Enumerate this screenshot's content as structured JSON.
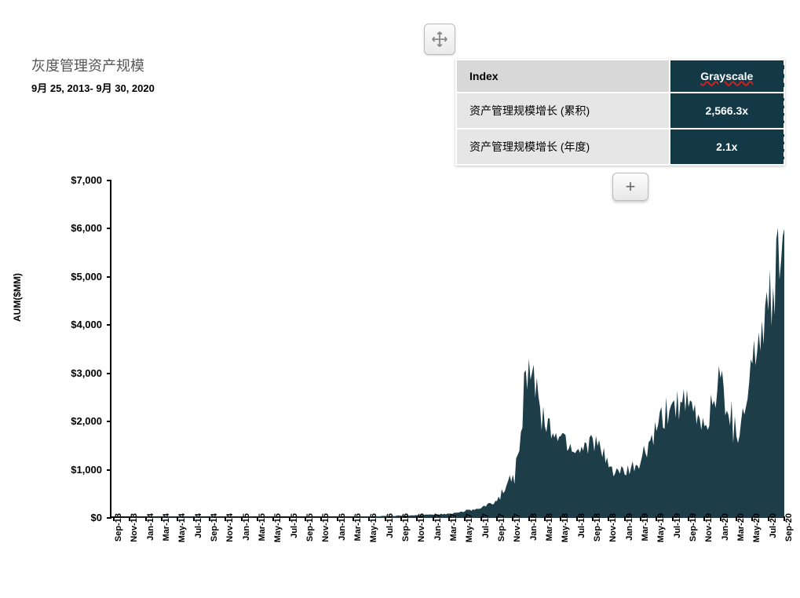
{
  "header": {
    "title": "灰度管理资产规模",
    "subtitle": "9月 25, 2013- 9月 30, 2020"
  },
  "table": {
    "header_label": "Index",
    "header_value": "Grayscale",
    "rows": [
      {
        "label": "资产管理规模增长 (累积)",
        "value": "2,566.3x"
      },
      {
        "label": "资产管理规模增长 (年度)",
        "value": "2.1x"
      }
    ],
    "header_bg": "#d8d8d8",
    "row_bg": "#e6e6e6",
    "value_bg": "#133947",
    "value_color": "#ffffff"
  },
  "chart": {
    "type": "area",
    "ylabel": "AUM($MM)",
    "ylim": [
      0,
      7000
    ],
    "ytick_step": 1000,
    "ytick_prefix": "$",
    "ytick_format": "comma",
    "background_color": "#ffffff",
    "series_color": "#1d3d48",
    "axis_color": "#000000",
    "label_fontsize": 12,
    "tick_fontsize": 11,
    "x_categories": [
      "Sep-13",
      "Nov-13",
      "Jan-14",
      "Mar-14",
      "May-14",
      "Jul-14",
      "Sep-14",
      "Nov-14",
      "Jan-15",
      "Mar-15",
      "May-15",
      "Jul-15",
      "Sep-15",
      "Nov-15",
      "Jan-16",
      "Mar-16",
      "May-16",
      "Jul-16",
      "Sep-16",
      "Nov-16",
      "Jan-17",
      "Mar-17",
      "May-17",
      "Jul-17",
      "Sep-17",
      "Nov-17",
      "Jan-18",
      "Mar-18",
      "May-18",
      "Jul-18",
      "Sep-18",
      "Nov-18",
      "Jan-19",
      "Mar-19",
      "May-19",
      "Jul-19",
      "Sep-19",
      "Nov-19",
      "Jan-20",
      "Mar-20",
      "May-20",
      "Jul-20",
      "Sep-20"
    ],
    "values": [
      3,
      15,
      20,
      22,
      25,
      25,
      22,
      20,
      18,
      16,
      15,
      15,
      14,
      16,
      18,
      20,
      30,
      40,
      45,
      55,
      70,
      90,
      140,
      200,
      350,
      900,
      3300,
      1900,
      1700,
      1400,
      1650,
      1050,
      900,
      1150,
      1800,
      2400,
      2300,
      1900,
      2900,
      1700,
      3200,
      4300,
      6000
    ],
    "noise_amplitude": 0.15
  },
  "handles": {
    "move_icon": "move-arrows-icon",
    "plus_icon": "plus-icon"
  }
}
